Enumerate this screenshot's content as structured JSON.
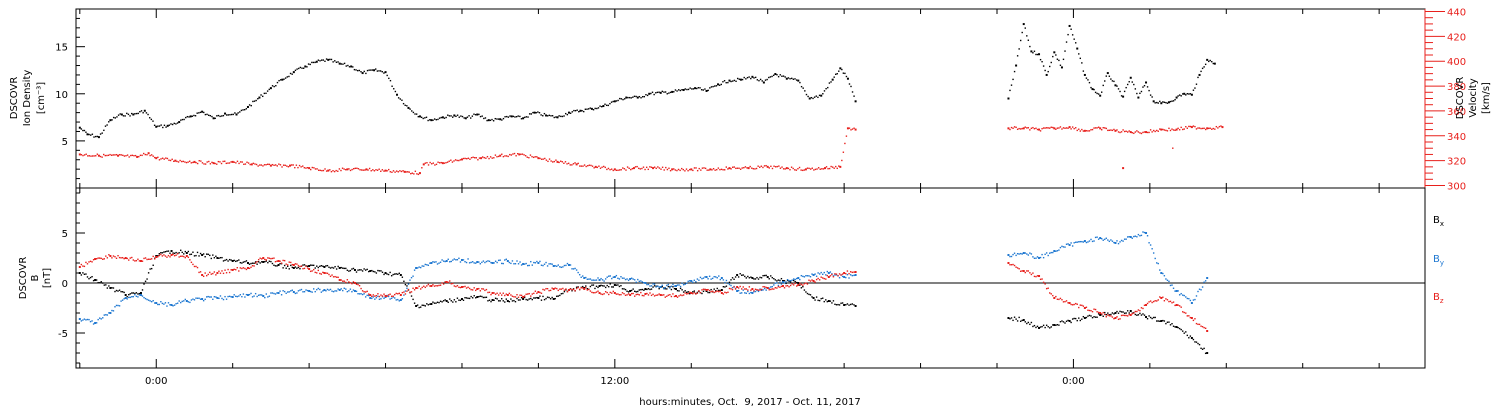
{
  "chart_data": [
    {
      "type": "scatter",
      "panel": "top",
      "ylabel": [
        "DSCOVR",
        "Ion Density",
        "[cm⁻³]"
      ],
      "y2label": [
        "DSCOVR",
        "Velocity",
        "[km/s]"
      ],
      "ylim": [
        0,
        19
      ],
      "y2lim": [
        298,
        442
      ],
      "yticks": [
        5,
        10,
        15
      ],
      "y2ticks": [
        300,
        320,
        340,
        360,
        380,
        400,
        420,
        440
      ],
      "colors": {
        "density": "#000000",
        "velocity": "#e8201c"
      },
      "series": [
        {
          "key": "density",
          "axis": "left",
          "x": [
            -2.0,
            -1.8,
            -1.5,
            -1.2,
            -0.9,
            -0.6,
            -0.3,
            0.0,
            0.3,
            0.6,
            0.9,
            1.2,
            1.5,
            1.8,
            2.1,
            2.4,
            2.7,
            3.0,
            3.3,
            3.6,
            3.9,
            4.2,
            4.5,
            4.8,
            5.1,
            5.4,
            5.7,
            6.0,
            6.3,
            6.6,
            6.9,
            7.2,
            7.5,
            7.8,
            8.1,
            8.4,
            8.7,
            9.0,
            9.3,
            9.6,
            9.9,
            10.2,
            10.5,
            10.8,
            11.1,
            11.4,
            11.7,
            12.0,
            12.3,
            12.6,
            12.9,
            13.2,
            13.5,
            13.8,
            14.1,
            14.4,
            14.7,
            15.0,
            15.3,
            15.6,
            15.9,
            16.2,
            16.5,
            16.8,
            17.1,
            17.4,
            17.7,
            17.9,
            18.1,
            18.3
          ],
          "y": [
            6.4,
            5.7,
            5.4,
            7.2,
            7.8,
            7.8,
            8.2,
            6.5,
            6.6,
            7.0,
            7.6,
            8.1,
            7.4,
            7.9,
            7.8,
            8.6,
            9.6,
            10.6,
            11.5,
            12.3,
            12.9,
            13.4,
            13.6,
            13.2,
            12.9,
            12.2,
            12.5,
            12.3,
            9.9,
            8.5,
            7.6,
            7.2,
            7.5,
            7.7,
            7.4,
            7.8,
            7.2,
            7.3,
            7.6,
            7.4,
            8.0,
            7.7,
            7.5,
            8.0,
            8.2,
            8.4,
            8.7,
            9.2,
            9.6,
            9.6,
            10.0,
            10.1,
            10.2,
            10.4,
            10.6,
            10.3,
            11.0,
            11.4,
            11.5,
            11.8,
            11.2,
            12.1,
            11.6,
            11.4,
            9.5,
            9.8,
            11.5,
            12.7,
            11.6,
            9.2
          ]
        },
        {
          "key": "density-gap",
          "axis": "left",
          "x": [
            22.3,
            22.5,
            22.7,
            22.9,
            23.1,
            23.3,
            23.5,
            23.7,
            23.9,
            24.1,
            24.3,
            24.5,
            24.7,
            24.9,
            25.1,
            25.3,
            25.5,
            25.7,
            25.9,
            26.1,
            26.3,
            26.5,
            26.7,
            26.9,
            27.1,
            27.3,
            27.5,
            27.7
          ],
          "y": [
            9.5,
            13.0,
            17.4,
            14.5,
            14.2,
            12.0,
            14.4,
            12.8,
            17.2,
            14.8,
            12.0,
            10.5,
            9.8,
            12.2,
            10.9,
            9.7,
            11.7,
            9.6,
            11.2,
            9.2,
            9.0,
            9.1,
            9.6,
            10.0,
            9.9,
            12.0,
            13.6,
            13.2
          ]
        },
        {
          "key": "velocity",
          "axis": "right",
          "x": [
            -2.0,
            -1.5,
            -1.0,
            -0.5,
            -0.2,
            0.0,
            0.5,
            1.0,
            1.5,
            2.0,
            2.5,
            3.0,
            3.5,
            4.0,
            4.5,
            5.0,
            5.5,
            6.0,
            6.5,
            6.9,
            7.0,
            7.5,
            8.0,
            8.5,
            9.0,
            9.5,
            10.0,
            10.5,
            11.0,
            11.5,
            12.0,
            12.5,
            13.0,
            13.5,
            14.0,
            14.5,
            15.0,
            15.5,
            16.0,
            16.5,
            17.0,
            17.5,
            17.9,
            18.1,
            18.3
          ],
          "y": [
            325,
            324,
            324,
            323,
            326,
            322,
            320,
            319,
            318,
            319,
            317,
            316,
            316,
            314,
            312,
            313,
            313,
            312,
            311,
            310,
            317,
            318,
            321,
            322,
            324,
            325,
            322,
            319,
            317,
            315,
            313,
            314,
            314,
            313,
            313,
            313,
            314,
            314,
            315,
            314,
            313,
            314,
            315,
            346,
            345
          ]
        },
        {
          "key": "velocity-gap",
          "axis": "right",
          "x": [
            22.3,
            22.7,
            23.1,
            23.5,
            23.9,
            24.3,
            24.7,
            25.1,
            25.5,
            25.9,
            26.3,
            26.7,
            27.1,
            27.5,
            27.9,
            25.3
          ],
          "y": [
            346,
            346,
            345,
            346,
            347,
            344,
            346,
            344,
            343,
            343,
            345,
            345,
            347,
            346,
            347,
            314
          ]
        }
      ]
    },
    {
      "type": "scatter",
      "panel": "bottom",
      "ylabel": [
        "DSCOVR",
        "B",
        "[nT]"
      ],
      "ylim": [
        -8.5,
        9.5
      ],
      "yticks": [
        -5,
        0,
        5
      ],
      "zero_line": true,
      "legend": [
        {
          "label": "B",
          "sub": "x",
          "color": "#000000"
        },
        {
          "label": "B",
          "sub": "y",
          "color": "#1f78d1"
        },
        {
          "label": "B",
          "sub": "z",
          "color": "#e8201c"
        }
      ],
      "series": [
        {
          "key": "bx",
          "color": "#000000",
          "x": [
            -2.0,
            -1.6,
            -1.2,
            -0.8,
            -0.4,
            0.0,
            0.4,
            0.8,
            1.2,
            1.6,
            2.0,
            2.4,
            2.8,
            3.2,
            3.6,
            4.0,
            4.4,
            4.8,
            5.2,
            5.6,
            6.0,
            6.4,
            6.8,
            7.2,
            7.6,
            8.0,
            8.4,
            8.8,
            9.2,
            9.6,
            10.0,
            10.4,
            10.8,
            11.2,
            11.6,
            12.0,
            12.4,
            12.8,
            13.2,
            13.6,
            14.0,
            14.4,
            14.8,
            15.2,
            15.6,
            16.0,
            16.4,
            16.8,
            17.2,
            17.6,
            18.0,
            18.3,
            22.3,
            22.7,
            23.1,
            23.5,
            23.9,
            24.3,
            24.7,
            25.1,
            25.5,
            25.9,
            26.3,
            26.7,
            27.1,
            27.5
          ],
          "y": [
            1.0,
            0.3,
            -0.5,
            -1.2,
            -1.0,
            2.7,
            3.2,
            3.0,
            2.8,
            2.5,
            2.2,
            2.0,
            2.1,
            1.8,
            1.5,
            1.7,
            1.6,
            1.5,
            1.3,
            1.2,
            1.0,
            0.8,
            -2.3,
            -2.1,
            -1.8,
            -1.6,
            -1.4,
            -1.7,
            -1.8,
            -1.6,
            -1.5,
            -1.6,
            -0.7,
            -0.5,
            -0.3,
            -0.2,
            -0.8,
            -0.6,
            -0.4,
            -0.6,
            -1.0,
            -0.8,
            -0.7,
            0.8,
            0.5,
            0.6,
            0.2,
            0.0,
            -1.5,
            -1.8,
            -2.2,
            -2.3,
            -3.5,
            -3.7,
            -4.5,
            -4.2,
            -3.8,
            -3.5,
            -3.2,
            -3.0,
            -2.8,
            -3.4,
            -3.8,
            -4.4,
            -5.5,
            -7.0
          ]
        },
        {
          "key": "by",
          "color": "#1f78d1",
          "x": [
            -2.0,
            -1.6,
            -1.2,
            -0.8,
            -0.4,
            0.0,
            0.4,
            0.8,
            1.2,
            1.6,
            2.0,
            2.4,
            2.8,
            3.2,
            3.6,
            4.0,
            4.4,
            4.8,
            5.2,
            5.6,
            6.0,
            6.4,
            6.8,
            7.2,
            7.6,
            8.0,
            8.4,
            8.8,
            9.2,
            9.6,
            10.0,
            10.4,
            10.8,
            11.2,
            11.6,
            12.0,
            12.4,
            12.8,
            13.2,
            13.6,
            14.0,
            14.4,
            14.8,
            15.2,
            15.6,
            16.0,
            16.4,
            16.8,
            17.2,
            17.6,
            18.0,
            18.3,
            22.3,
            22.7,
            23.1,
            23.5,
            23.9,
            24.3,
            24.7,
            25.1,
            25.5,
            25.9,
            26.3,
            26.7,
            27.1,
            27.5
          ],
          "y": [
            -3.6,
            -4.0,
            -3.0,
            -1.5,
            -1.2,
            -2.0,
            -2.2,
            -1.8,
            -1.6,
            -1.5,
            -1.4,
            -1.2,
            -1.3,
            -1.0,
            -0.9,
            -0.8,
            -0.7,
            -0.7,
            -0.8,
            -1.5,
            -1.4,
            -1.7,
            1.5,
            2.0,
            2.2,
            2.3,
            2.1,
            2.0,
            2.2,
            1.9,
            2.0,
            1.7,
            1.8,
            0.5,
            0.3,
            0.6,
            0.4,
            0.0,
            -0.4,
            -0.3,
            0.2,
            0.6,
            0.5,
            -0.8,
            -1.0,
            -0.5,
            0.1,
            0.5,
            0.8,
            1.0,
            0.6,
            0.8,
            2.8,
            3.0,
            2.5,
            3.2,
            3.8,
            4.2,
            4.5,
            4.0,
            4.6,
            5.0,
            1.0,
            -0.8,
            -2.0,
            0.5
          ]
        },
        {
          "key": "bz",
          "color": "#e8201c",
          "x": [
            -2.0,
            -1.6,
            -1.2,
            -0.8,
            -0.4,
            0.0,
            0.4,
            0.8,
            1.2,
            1.6,
            2.0,
            2.4,
            2.8,
            3.2,
            3.6,
            4.0,
            4.4,
            4.8,
            5.2,
            5.6,
            6.0,
            6.4,
            6.8,
            7.2,
            7.6,
            8.0,
            8.4,
            8.8,
            9.2,
            9.6,
            10.0,
            10.4,
            10.8,
            11.2,
            11.6,
            12.0,
            12.4,
            12.8,
            13.2,
            13.6,
            14.0,
            14.4,
            14.8,
            15.2,
            15.6,
            16.0,
            16.4,
            16.8,
            17.2,
            17.6,
            18.0,
            18.3,
            22.3,
            22.7,
            23.1,
            23.5,
            23.9,
            24.3,
            24.7,
            25.1,
            25.5,
            25.9,
            26.3,
            26.7,
            27.1,
            27.5
          ],
          "y": [
            1.6,
            2.4,
            2.7,
            2.5,
            2.2,
            2.6,
            2.8,
            2.7,
            0.8,
            1.0,
            1.3,
            1.5,
            2.5,
            2.2,
            1.8,
            1.4,
            1.0,
            0.3,
            0.0,
            -1.2,
            -1.3,
            -1.2,
            -0.5,
            -0.3,
            0.1,
            -0.4,
            -0.6,
            -1.0,
            -1.2,
            -1.4,
            -0.9,
            -0.6,
            -0.7,
            -0.6,
            -1.0,
            -1.0,
            -1.2,
            -1.1,
            -1.2,
            -1.3,
            -1.0,
            -0.7,
            -1.0,
            -0.4,
            -0.6,
            -0.5,
            -0.3,
            -0.2,
            0.2,
            0.6,
            1.0,
            1.1,
            2.0,
            1.2,
            0.7,
            -1.5,
            -2.0,
            -2.5,
            -3.0,
            -3.5,
            -3.2,
            -2.2,
            -1.5,
            -2.2,
            -3.5,
            -4.8
          ]
        }
      ]
    }
  ],
  "xaxis": {
    "xlim": [
      -2.1,
      33.2
    ],
    "major_ticks": [
      0,
      12,
      24
    ],
    "tick_labels": [
      "0:00",
      "12:00",
      "0:00"
    ],
    "minor_step": 2,
    "xlabel": "hours:minutes, Oct.  9, 2017 - Oct. 11, 2017"
  }
}
